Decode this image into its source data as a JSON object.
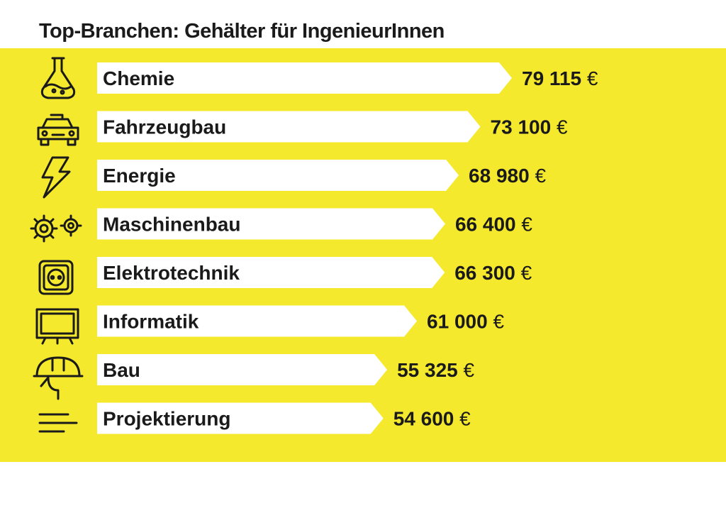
{
  "chart_data": {
    "type": "bar",
    "title": "Top-Branchen: Gehälter für IngenieurInnen",
    "unit": "€",
    "categories": [
      "Chemie",
      "Fahrzeugbau",
      "Energie",
      "Maschinenbau",
      "Elektrotechnik",
      "Informatik",
      "Bau",
      "Projektierung"
    ],
    "values": [
      79115,
      73100,
      68980,
      66400,
      66300,
      61000,
      55325,
      54600
    ],
    "value_labels": [
      "79 115",
      "73 100",
      "68 980",
      "66 400",
      "66 300",
      "61 000",
      "55 325",
      "54 600"
    ],
    "icons": [
      "flask-icon",
      "car-icon",
      "lightning-icon",
      "gears-icon",
      "socket-icon",
      "monitor-icon",
      "hardhat-icon",
      "text-lines-icon"
    ],
    "colors": {
      "background": "#f5e92d",
      "bar": "#ffffff",
      "text": "#1a1a1a"
    }
  }
}
